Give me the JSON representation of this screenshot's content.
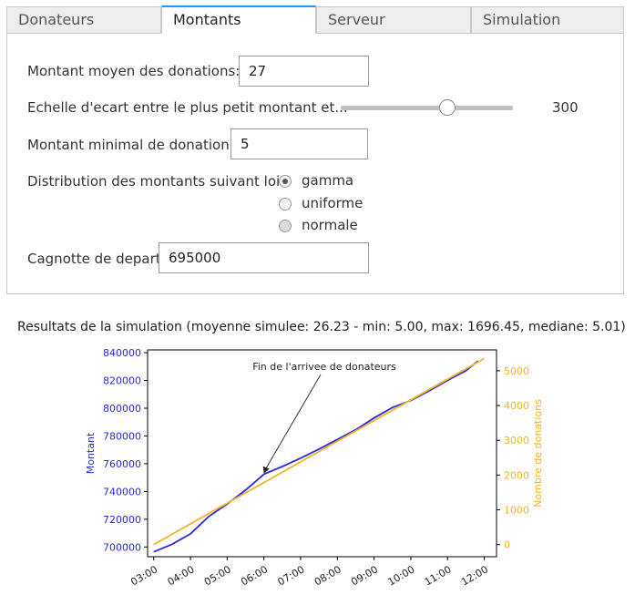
{
  "tabs": [
    {
      "label": "Donateurs",
      "active": false
    },
    {
      "label": "Montants",
      "active": true
    },
    {
      "label": "Serveur",
      "active": false
    },
    {
      "label": "Simulation",
      "active": false
    }
  ],
  "form": {
    "mean_label": "Montant moyen des donations:",
    "mean_value": "27",
    "scale_label": "Echelle d'ecart entre le plus petit montant et...",
    "scale_value": "300",
    "scale_slider_fraction": 0.62,
    "min_label": "Montant minimal de donation:",
    "min_value": "5",
    "distribution_label": "Distribution des montants suivant loi:",
    "distribution_options": [
      {
        "label": "gamma",
        "checked": true
      },
      {
        "label": "uniforme",
        "checked": false
      },
      {
        "label": "normale",
        "checked": false
      }
    ],
    "start_label": "Cagnotte de depart:",
    "start_value": "695000"
  },
  "results": {
    "title": "Resultats de la simulation (moyenne simulee: 26.23 - min: 5.00, max: 1696.45, mediane: 5.01)"
  },
  "chart_data": {
    "type": "line",
    "x_ticks": [
      "03:00",
      "04:00",
      "05:00",
      "06:00",
      "07:00",
      "08:00",
      "09:00",
      "10:00",
      "11:00",
      "12:00"
    ],
    "xlim": [
      "02:50",
      "12:20"
    ],
    "ylabel_left": "Montant",
    "ylabel_right": "Nombre de donations",
    "ylim_left": [
      693000,
      842000
    ],
    "ylim_right": [
      -350,
      5600
    ],
    "y_ticks_left": [
      700000,
      720000,
      740000,
      760000,
      780000,
      800000,
      820000,
      840000
    ],
    "y_ticks_right": [
      0,
      1000,
      2000,
      3000,
      4000,
      5000
    ],
    "annotation": {
      "text": "Fin de l'arrivee de donateurs",
      "x": "06:00",
      "y": 753000
    },
    "colors": {
      "montant": "#2b2bdc",
      "donations": "#f5b324",
      "axis_left": "#2b2bdc",
      "axis_right": "#f5b324"
    },
    "series": [
      {
        "name": "Montant",
        "axis": "left",
        "x": [
          "03:00",
          "03:30",
          "04:00",
          "04:30",
          "05:00",
          "05:30",
          "06:00",
          "06:30",
          "07:00",
          "07:30",
          "08:00",
          "08:30",
          "09:00",
          "09:30",
          "10:00",
          "10:30",
          "11:00",
          "11:30",
          "11:50"
        ],
        "values": [
          696500,
          702000,
          709500,
          722000,
          731000,
          741000,
          752500,
          758000,
          764000,
          770500,
          777500,
          784500,
          793000,
          800500,
          805500,
          812500,
          820000,
          827000,
          834000
        ]
      },
      {
        "name": "Nombre de donations",
        "axis": "right",
        "x": [
          "03:00",
          "12:00"
        ],
        "values": [
          0,
          5350
        ]
      }
    ]
  }
}
